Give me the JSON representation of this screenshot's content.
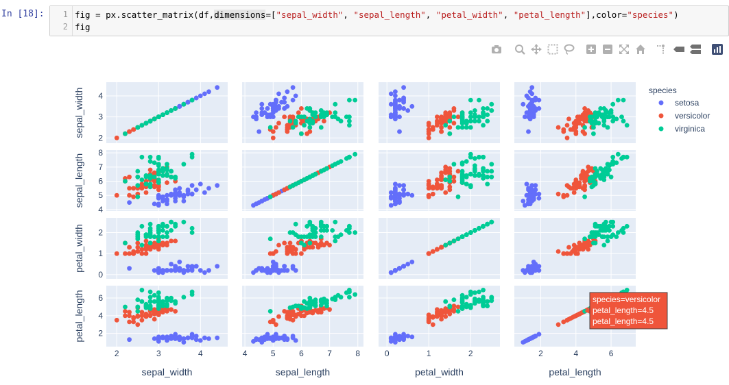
{
  "cell": {
    "prompt": "In  [18]:",
    "lines": [
      {
        "num": "1",
        "parts": [
          {
            "t": "fig = px.scatter_matrix(df,",
            "c": ""
          },
          {
            "t": "dimensions",
            "c": "kw"
          },
          {
            "t": "=[",
            "c": ""
          },
          {
            "t": "\"sepal_width\"",
            "c": "str"
          },
          {
            "t": ", ",
            "c": ""
          },
          {
            "t": "\"sepal_length\"",
            "c": "str"
          },
          {
            "t": ", ",
            "c": ""
          },
          {
            "t": "\"petal_width\"",
            "c": "str"
          },
          {
            "t": ", ",
            "c": ""
          },
          {
            "t": "\"petal_length\"",
            "c": "str"
          },
          {
            "t": "],color=",
            "c": ""
          },
          {
            "t": "\"species\"",
            "c": "str"
          },
          {
            "t": ")",
            "c": ""
          }
        ]
      },
      {
        "num": "2",
        "parts": [
          {
            "t": "fig",
            "c": ""
          }
        ]
      }
    ]
  },
  "modebar": {
    "icons": [
      "camera-icon",
      "zoom-icon",
      "pan-icon",
      "box-select-icon",
      "lasso-icon",
      "zoom-in-icon",
      "zoom-out-icon",
      "autoscale-icon",
      "reset-axes-icon",
      "spike-lines-icon",
      "hover-closest-icon",
      "hover-compare-icon",
      "plotly-logo-icon"
    ]
  },
  "colors": {
    "setosa": "#636efa",
    "versicolor": "#ef553b",
    "virginica": "#00cc96",
    "panel": "#e5ecf6"
  },
  "legend": {
    "title": "species",
    "items": [
      "setosa",
      "versicolor",
      "virginica"
    ]
  },
  "tooltip": {
    "lines": [
      "species=versicolor",
      "petal_length=4.5",
      "petal_length=4.5"
    ]
  },
  "chart_data": {
    "type": "scatter",
    "dimensions": [
      "sepal_width",
      "sepal_length",
      "petal_width",
      "petal_length"
    ],
    "ranges": {
      "sepal_width": [
        1.75,
        4.65
      ],
      "sepal_length": [
        3.9,
        8.2
      ],
      "petal_width": [
        -0.2,
        2.7
      ],
      "petal_length": [
        0.5,
        7.4
      ]
    },
    "ticks": {
      "sepal_width": [
        2,
        3,
        4
      ],
      "sepal_length": [
        4,
        5,
        6,
        7,
        8
      ],
      "petal_width": [
        0,
        1,
        2
      ],
      "petal_length": [
        2,
        4,
        6
      ]
    },
    "series": [
      {
        "name": "setosa",
        "color": "#636efa",
        "points": [
          [
            3.5,
            5.1,
            0.2,
            1.4
          ],
          [
            3.0,
            4.9,
            0.2,
            1.4
          ],
          [
            3.2,
            4.7,
            0.2,
            1.3
          ],
          [
            3.1,
            4.6,
            0.2,
            1.5
          ],
          [
            3.6,
            5.0,
            0.2,
            1.4
          ],
          [
            3.9,
            5.4,
            0.4,
            1.7
          ],
          [
            3.4,
            4.6,
            0.3,
            1.4
          ],
          [
            3.4,
            5.0,
            0.2,
            1.5
          ],
          [
            2.9,
            4.4,
            0.2,
            1.4
          ],
          [
            3.1,
            4.9,
            0.1,
            1.5
          ],
          [
            3.7,
            5.4,
            0.2,
            1.5
          ],
          [
            3.4,
            4.8,
            0.2,
            1.6
          ],
          [
            3.0,
            4.8,
            0.1,
            1.4
          ],
          [
            3.0,
            4.3,
            0.1,
            1.1
          ],
          [
            4.0,
            5.8,
            0.2,
            1.2
          ],
          [
            4.4,
            5.7,
            0.4,
            1.5
          ],
          [
            3.9,
            5.4,
            0.4,
            1.3
          ],
          [
            3.5,
            5.1,
            0.3,
            1.4
          ],
          [
            3.8,
            5.7,
            0.3,
            1.7
          ],
          [
            3.8,
            5.1,
            0.3,
            1.5
          ],
          [
            3.4,
            5.4,
            0.2,
            1.7
          ],
          [
            3.7,
            5.1,
            0.4,
            1.5
          ],
          [
            3.6,
            4.6,
            0.2,
            1.0
          ],
          [
            3.3,
            5.1,
            0.5,
            1.7
          ],
          [
            3.4,
            4.8,
            0.2,
            1.9
          ],
          [
            3.0,
            5.0,
            0.2,
            1.6
          ],
          [
            3.4,
            5.0,
            0.4,
            1.6
          ],
          [
            3.5,
            5.2,
            0.2,
            1.5
          ],
          [
            3.4,
            5.2,
            0.2,
            1.4
          ],
          [
            3.2,
            4.7,
            0.2,
            1.6
          ],
          [
            3.1,
            4.8,
            0.2,
            1.6
          ],
          [
            3.4,
            5.4,
            0.4,
            1.5
          ],
          [
            4.1,
            5.2,
            0.1,
            1.5
          ],
          [
            4.2,
            5.5,
            0.2,
            1.4
          ],
          [
            3.1,
            4.9,
            0.2,
            1.5
          ],
          [
            3.2,
            5.0,
            0.2,
            1.2
          ],
          [
            3.5,
            5.5,
            0.2,
            1.3
          ],
          [
            3.6,
            4.9,
            0.1,
            1.4
          ],
          [
            3.0,
            4.4,
            0.2,
            1.3
          ],
          [
            3.4,
            5.1,
            0.2,
            1.5
          ],
          [
            3.5,
            5.0,
            0.3,
            1.3
          ],
          [
            2.3,
            4.5,
            0.3,
            1.3
          ],
          [
            3.2,
            4.4,
            0.2,
            1.3
          ],
          [
            3.5,
            5.0,
            0.6,
            1.6
          ],
          [
            3.8,
            5.1,
            0.4,
            1.9
          ],
          [
            3.0,
            4.8,
            0.3,
            1.4
          ],
          [
            3.8,
            5.1,
            0.2,
            1.6
          ],
          [
            3.2,
            4.6,
            0.2,
            1.4
          ],
          [
            3.7,
            5.3,
            0.2,
            1.5
          ],
          [
            3.3,
            5.0,
            0.2,
            1.4
          ]
        ]
      },
      {
        "name": "versicolor",
        "color": "#ef553b",
        "points": [
          [
            3.2,
            7.0,
            1.4,
            4.7
          ],
          [
            3.2,
            6.4,
            1.5,
            4.5
          ],
          [
            3.1,
            6.9,
            1.5,
            4.9
          ],
          [
            2.3,
            5.5,
            1.3,
            4.0
          ],
          [
            2.8,
            6.5,
            1.5,
            4.6
          ],
          [
            2.8,
            5.7,
            1.3,
            4.5
          ],
          [
            3.3,
            6.3,
            1.6,
            4.7
          ],
          [
            2.4,
            4.9,
            1.0,
            3.3
          ],
          [
            2.9,
            6.6,
            1.3,
            4.6
          ],
          [
            2.7,
            5.2,
            1.4,
            3.9
          ],
          [
            2.0,
            5.0,
            1.0,
            3.5
          ],
          [
            3.0,
            5.9,
            1.5,
            4.2
          ],
          [
            2.2,
            6.0,
            1.0,
            4.0
          ],
          [
            2.9,
            6.1,
            1.4,
            4.7
          ],
          [
            2.9,
            5.6,
            1.3,
            3.6
          ],
          [
            3.1,
            6.7,
            1.4,
            4.4
          ],
          [
            3.0,
            5.6,
            1.5,
            4.5
          ],
          [
            2.7,
            5.8,
            1.0,
            4.1
          ],
          [
            2.2,
            6.2,
            1.5,
            4.5
          ],
          [
            2.5,
            5.6,
            1.1,
            3.9
          ],
          [
            3.2,
            5.9,
            1.8,
            4.8
          ],
          [
            2.8,
            6.1,
            1.3,
            4.0
          ],
          [
            2.5,
            6.3,
            1.5,
            4.9
          ],
          [
            2.8,
            6.1,
            1.2,
            4.7
          ],
          [
            2.9,
            6.4,
            1.3,
            4.3
          ],
          [
            3.0,
            6.6,
            1.4,
            4.4
          ],
          [
            2.8,
            6.8,
            1.4,
            4.8
          ],
          [
            3.0,
            6.7,
            1.7,
            5.0
          ],
          [
            2.9,
            6.0,
            1.5,
            4.5
          ],
          [
            2.6,
            5.7,
            1.0,
            3.5
          ],
          [
            2.4,
            5.5,
            1.1,
            3.8
          ],
          [
            2.4,
            5.5,
            1.0,
            3.7
          ],
          [
            2.7,
            5.8,
            1.2,
            3.9
          ],
          [
            2.7,
            6.0,
            1.6,
            5.1
          ],
          [
            3.0,
            5.4,
            1.5,
            4.5
          ],
          [
            3.4,
            6.0,
            1.6,
            4.5
          ],
          [
            3.1,
            6.7,
            1.5,
            4.7
          ],
          [
            2.3,
            6.3,
            1.3,
            4.4
          ],
          [
            3.0,
            5.6,
            1.3,
            4.1
          ],
          [
            2.5,
            5.5,
            1.3,
            4.0
          ],
          [
            2.6,
            5.5,
            1.2,
            4.4
          ],
          [
            3.0,
            6.1,
            1.4,
            4.6
          ],
          [
            2.6,
            5.8,
            1.2,
            4.0
          ],
          [
            2.3,
            5.0,
            1.0,
            3.3
          ],
          [
            2.7,
            5.6,
            1.3,
            4.2
          ],
          [
            3.0,
            5.7,
            1.2,
            4.2
          ],
          [
            2.9,
            5.7,
            1.3,
            4.2
          ],
          [
            2.9,
            6.2,
            1.3,
            4.3
          ],
          [
            2.5,
            5.1,
            1.1,
            3.0
          ],
          [
            2.8,
            5.7,
            1.3,
            4.1
          ]
        ]
      },
      {
        "name": "virginica",
        "color": "#00cc96",
        "points": [
          [
            3.3,
            6.3,
            2.5,
            6.0
          ],
          [
            2.7,
            5.8,
            1.9,
            5.1
          ],
          [
            3.0,
            7.1,
            2.1,
            5.9
          ],
          [
            2.9,
            6.3,
            1.8,
            5.6
          ],
          [
            3.0,
            6.5,
            2.2,
            5.8
          ],
          [
            3.0,
            7.6,
            2.1,
            6.6
          ],
          [
            2.5,
            4.9,
            1.7,
            4.5
          ],
          [
            2.9,
            7.3,
            1.8,
            6.3
          ],
          [
            2.5,
            6.7,
            1.8,
            5.8
          ],
          [
            3.6,
            7.2,
            2.5,
            6.1
          ],
          [
            3.2,
            6.5,
            2.0,
            5.1
          ],
          [
            2.7,
            6.4,
            1.9,
            5.3
          ],
          [
            3.0,
            6.8,
            2.1,
            5.5
          ],
          [
            2.5,
            5.7,
            2.0,
            5.0
          ],
          [
            2.8,
            5.8,
            2.4,
            5.1
          ],
          [
            3.2,
            6.4,
            2.3,
            5.3
          ],
          [
            3.0,
            6.5,
            1.8,
            5.5
          ],
          [
            3.8,
            7.7,
            2.2,
            6.7
          ],
          [
            2.6,
            7.7,
            2.3,
            6.9
          ],
          [
            2.2,
            6.0,
            1.5,
            5.0
          ],
          [
            3.2,
            6.9,
            2.3,
            5.7
          ],
          [
            2.8,
            5.6,
            2.0,
            4.9
          ],
          [
            2.8,
            7.7,
            2.0,
            6.7
          ],
          [
            2.7,
            6.3,
            1.8,
            4.9
          ],
          [
            3.3,
            6.7,
            2.1,
            5.7
          ],
          [
            3.2,
            7.2,
            1.8,
            6.0
          ],
          [
            2.8,
            6.2,
            1.8,
            4.8
          ],
          [
            3.0,
            6.1,
            1.8,
            4.9
          ],
          [
            2.8,
            6.4,
            2.1,
            5.6
          ],
          [
            3.0,
            7.2,
            1.6,
            5.8
          ],
          [
            2.8,
            7.4,
            1.9,
            6.1
          ],
          [
            3.8,
            7.9,
            2.0,
            6.4
          ],
          [
            2.8,
            6.4,
            2.2,
            5.6
          ],
          [
            2.8,
            6.3,
            1.5,
            5.1
          ],
          [
            2.6,
            6.1,
            1.4,
            5.6
          ],
          [
            3.0,
            7.7,
            2.3,
            6.1
          ],
          [
            3.4,
            6.3,
            2.4,
            5.6
          ],
          [
            3.1,
            6.4,
            1.8,
            5.5
          ],
          [
            3.0,
            6.0,
            1.8,
            4.8
          ],
          [
            3.1,
            6.9,
            2.1,
            5.4
          ],
          [
            3.1,
            6.7,
            2.4,
            5.6
          ],
          [
            3.1,
            6.9,
            2.3,
            5.1
          ],
          [
            2.7,
            5.8,
            1.9,
            5.1
          ],
          [
            3.2,
            6.8,
            2.3,
            5.9
          ],
          [
            3.3,
            6.7,
            2.5,
            5.7
          ],
          [
            3.0,
            6.7,
            2.3,
            5.2
          ],
          [
            2.5,
            6.3,
            1.9,
            5.0
          ],
          [
            3.0,
            6.5,
            2.0,
            5.2
          ],
          [
            3.4,
            6.2,
            2.3,
            5.4
          ],
          [
            3.0,
            5.9,
            1.8,
            5.1
          ]
        ]
      }
    ]
  }
}
